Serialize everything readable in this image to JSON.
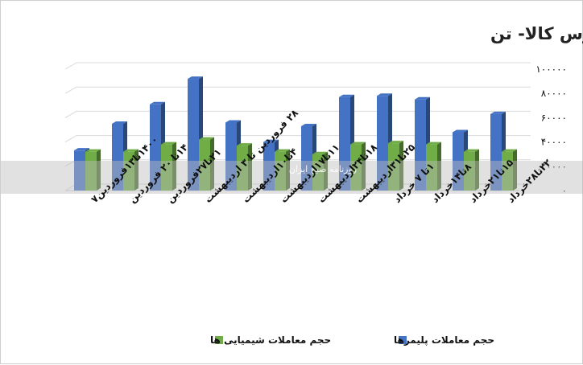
{
  "chart_data": {
    "type": "bar",
    "title": "حجم معاملات هفتگی محصولات پتروشیمیایی بورس کالا- تن",
    "categories": [
      "۱۴۰۰تا۱۳فروردین۷",
      "۱۴تا ۲۰ فروردین",
      "۲۱تا۲۷فروردین",
      "۲۸ فروردین تا ۳ اردیبهشت",
      "۴تا۱۰اردیبهشت",
      "۱۱تا۱۷اردیبهشت",
      "۱۸تا۲۴اردیبهشت",
      "۲۵تا۳۱اردیبهشت",
      "۱تا ۷ خرداد",
      "۸تا۱۴خرداد",
      "۱۵تا۲۱خرداد",
      "۲۲تا۲۸خرداد"
    ],
    "series": [
      {
        "name": "حجم معاملات پلیمرها",
        "color": "#4472c4",
        "values": [
          33000,
          55000,
          71000,
          92000,
          56000,
          40000,
          53000,
          77000,
          78000,
          75000,
          48000,
          63000
        ]
      },
      {
        "name": "حجم معاملات شیمیایی ها",
        "color": "#70ad47",
        "values": [
          32000,
          32000,
          38000,
          42000,
          37000,
          32000,
          30000,
          38000,
          39000,
          38000,
          32000,
          32000
        ]
      }
    ],
    "yticks": [
      "۱۰۰۰۰۰",
      "۸۰۰۰۰",
      "۶۰۰۰۰",
      "۴۰۰۰۰",
      "۲۰۰۰۰",
      "۰"
    ],
    "ylim": [
      0,
      100000
    ],
    "grid": true,
    "legend_position": "bottom",
    "watermark_text": "روزنامه صبح ایران"
  }
}
